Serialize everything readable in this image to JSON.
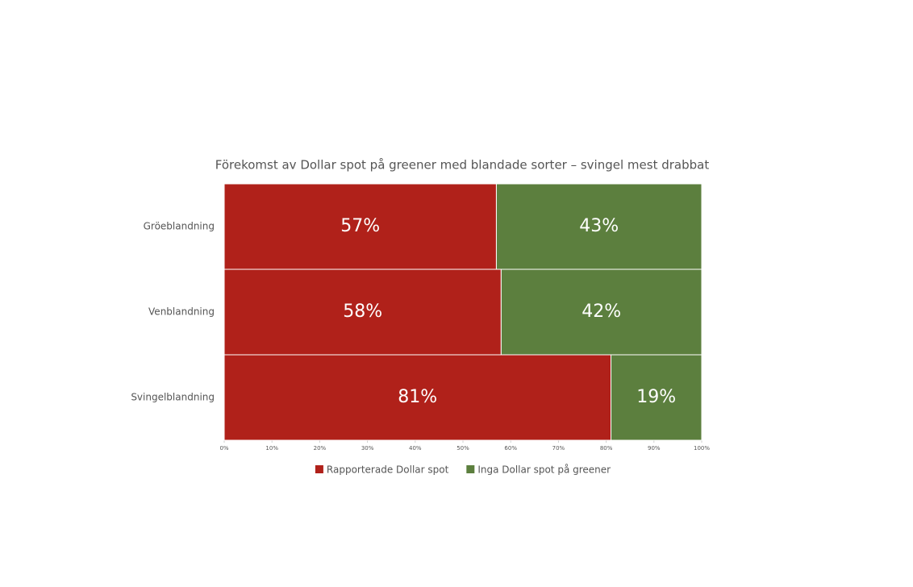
{
  "chart_data": {
    "type": "stacked-bar-horizontal",
    "title": "Förekomst av Dollar spot på greener med blandade sorter – svingel mest drabbat",
    "categories": [
      "Gröeblandning",
      "Venblandning",
      "Svingelblandning"
    ],
    "series": [
      {
        "name": "Rapporterade Dollar spot",
        "color": "#b0211a",
        "values": [
          57,
          58,
          81
        ],
        "value_labels": [
          "57%",
          "58%",
          "81%"
        ]
      },
      {
        "name": "Inga Dollar spot på greener",
        "color": "#5c7f3e",
        "values": [
          43,
          42,
          19
        ],
        "value_labels": [
          "43%",
          "42%",
          "19%"
        ]
      }
    ],
    "xlim": [
      0,
      100
    ],
    "xticks": [
      {
        "value": 0,
        "label": "0%"
      },
      {
        "value": 10,
        "label": "10%"
      },
      {
        "value": 20,
        "label": "20%"
      },
      {
        "value": 30,
        "label": "30%"
      },
      {
        "value": 40,
        "label": "40%"
      },
      {
        "value": 50,
        "label": "50%"
      },
      {
        "value": 60,
        "label": "60%"
      },
      {
        "value": 70,
        "label": "70%"
      },
      {
        "value": 80,
        "label": "80%"
      },
      {
        "value": 90,
        "label": "90%"
      },
      {
        "value": 100,
        "label": "100%"
      }
    ],
    "legend": "bottom"
  }
}
